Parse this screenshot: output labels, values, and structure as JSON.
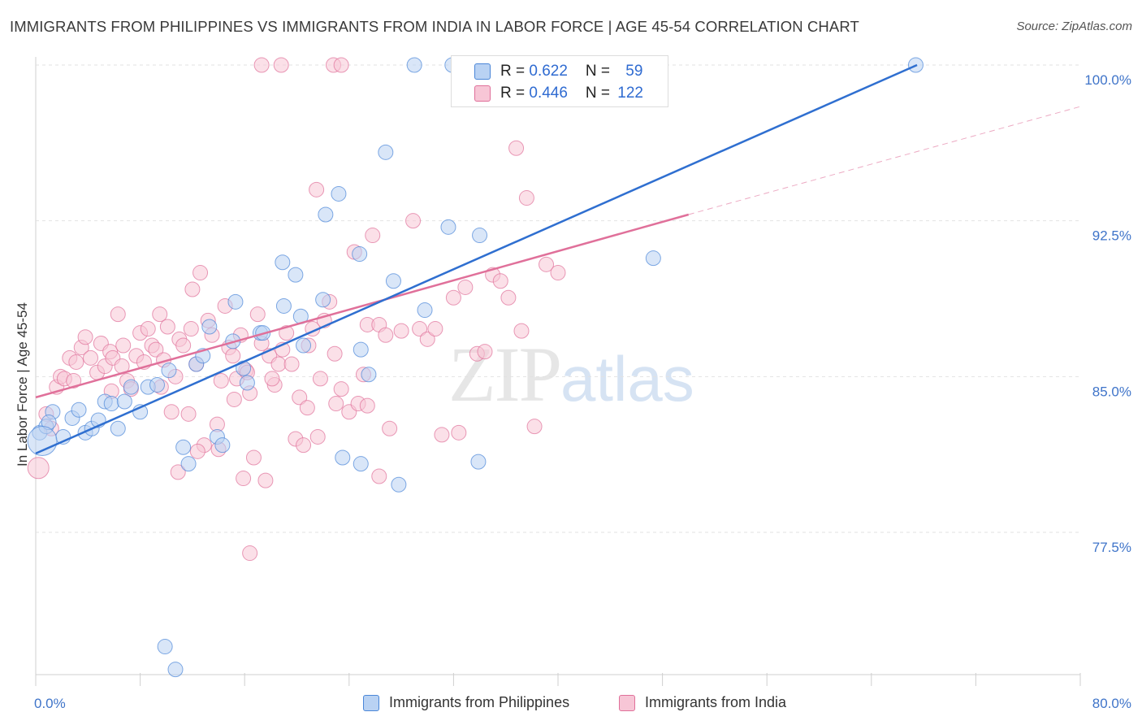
{
  "title": "IMMIGRANTS FROM PHILIPPINES VS IMMIGRANTS FROM INDIA IN LABOR FORCE | AGE 45-54 CORRELATION CHART",
  "source": "Source: ZipAtlas.com",
  "watermark": {
    "zip": "ZIP",
    "atlas": "atlas"
  },
  "stats": [
    {
      "r_label": "R = ",
      "r_value": "0.622",
      "n_label": "N = ",
      "n_value": "59",
      "color": "#a9c7f0"
    },
    {
      "r_label": "R = ",
      "r_value": "0.446",
      "n_label": "N = ",
      "n_value": "122",
      "color": "#f5b9cc"
    }
  ],
  "chart_data": {
    "type": "scatter",
    "xlabel": "",
    "ylabel": "In Labor Force | Age 45-54",
    "xlim": [
      0,
      80
    ],
    "ylim": [
      70.5,
      100.8
    ],
    "x_ticks": [
      {
        "value": 0,
        "label": "0.0%"
      },
      {
        "value": 80,
        "label": "80.0%"
      }
    ],
    "y_ticks": [
      {
        "value": 100,
        "label": "100.0%"
      },
      {
        "value": 92.5,
        "label": "92.5%"
      },
      {
        "value": 85,
        "label": "85.0%"
      },
      {
        "value": 77.5,
        "label": "77.5%"
      }
    ],
    "grid": true,
    "legend": "bottom",
    "series": [
      {
        "name": "Immigrants from Philippines",
        "color": "#4a86d8",
        "fill": "#b9d2f3",
        "trend": {
          "x": [
            0,
            67.5
          ],
          "y": [
            81.3,
            100
          ]
        },
        "points": [
          [
            0.3,
            82.3
          ],
          [
            0.8,
            82.6
          ],
          [
            1.3,
            83.3
          ],
          [
            1.0,
            82.8
          ],
          [
            2.1,
            82.1
          ],
          [
            2.8,
            83.0
          ],
          [
            3.3,
            83.4
          ],
          [
            3.8,
            82.3
          ],
          [
            4.3,
            82.5
          ],
          [
            4.8,
            82.9
          ],
          [
            5.3,
            83.8
          ],
          [
            5.8,
            83.7
          ],
          [
            6.3,
            82.5
          ],
          [
            6.8,
            83.8
          ],
          [
            7.3,
            84.5
          ],
          [
            8.0,
            83.3
          ],
          [
            8.6,
            84.5
          ],
          [
            9.3,
            84.6
          ],
          [
            10.2,
            85.3
          ],
          [
            11.3,
            81.6
          ],
          [
            11.7,
            80.8
          ],
          [
            12.3,
            85.6
          ],
          [
            12.8,
            86.0
          ],
          [
            13.3,
            87.4
          ],
          [
            13.9,
            82.1
          ],
          [
            14.3,
            81.7
          ],
          [
            15.1,
            86.7
          ],
          [
            15.3,
            88.6
          ],
          [
            15.9,
            85.4
          ],
          [
            16.2,
            84.7
          ],
          [
            17.2,
            87.1
          ],
          [
            17.4,
            87.1
          ],
          [
            18.9,
            90.5
          ],
          [
            19.0,
            88.4
          ],
          [
            19.9,
            89.9
          ],
          [
            20.3,
            87.9
          ],
          [
            20.5,
            86.5
          ],
          [
            22.2,
            92.8
          ],
          [
            22.0,
            88.7
          ],
          [
            23.2,
            93.8
          ],
          [
            23.5,
            81.1
          ],
          [
            24.8,
            90.9
          ],
          [
            24.9,
            86.3
          ],
          [
            24.9,
            80.8
          ],
          [
            25.5,
            85.1
          ],
          [
            26.8,
            95.8
          ],
          [
            27.4,
            89.6
          ],
          [
            27.8,
            79.8
          ],
          [
            29.0,
            100
          ],
          [
            29.8,
            88.2
          ],
          [
            31.6,
            92.2
          ],
          [
            31.9,
            100
          ],
          [
            34.0,
            91.8
          ],
          [
            33.9,
            80.9
          ],
          [
            47.3,
            90.7
          ],
          [
            9.9,
            72.0
          ],
          [
            10.7,
            70.9
          ],
          [
            67.4,
            100
          ],
          [
            0.5,
            81.9
          ]
        ]
      },
      {
        "name": "Immigrants from India",
        "color": "#e0709a",
        "fill": "#f7c6d6",
        "trend": {
          "x": [
            0,
            50
          ],
          "y": [
            84.0,
            92.8
          ]
        },
        "trend_ext": {
          "x": [
            50,
            80
          ],
          "y": [
            92.8,
            98.0
          ]
        },
        "points": [
          [
            0.2,
            80.6
          ],
          [
            0.8,
            83.2
          ],
          [
            1.2,
            82.5
          ],
          [
            1.6,
            84.5
          ],
          [
            1.9,
            85.0
          ],
          [
            2.2,
            84.9
          ],
          [
            2.6,
            85.9
          ],
          [
            2.9,
            84.8
          ],
          [
            3.1,
            85.7
          ],
          [
            3.5,
            86.4
          ],
          [
            3.8,
            86.9
          ],
          [
            4.2,
            85.9
          ],
          [
            4.7,
            85.2
          ],
          [
            5.0,
            86.6
          ],
          [
            5.3,
            85.5
          ],
          [
            5.7,
            86.2
          ],
          [
            5.9,
            85.9
          ],
          [
            6.3,
            88.0
          ],
          [
            6.6,
            85.5
          ],
          [
            7.0,
            84.8
          ],
          [
            7.3,
            84.4
          ],
          [
            7.7,
            86.0
          ],
          [
            8.0,
            87.1
          ],
          [
            8.3,
            85.7
          ],
          [
            8.6,
            87.3
          ],
          [
            8.9,
            86.5
          ],
          [
            9.2,
            86.3
          ],
          [
            9.5,
            88.0
          ],
          [
            9.8,
            85.8
          ],
          [
            10.1,
            87.4
          ],
          [
            10.4,
            83.3
          ],
          [
            10.7,
            85.0
          ],
          [
            11.0,
            86.8
          ],
          [
            11.3,
            86.5
          ],
          [
            11.7,
            83.2
          ],
          [
            12.0,
            89.2
          ],
          [
            12.3,
            85.6
          ],
          [
            12.6,
            90.0
          ],
          [
            12.9,
            81.7
          ],
          [
            13.2,
            87.7
          ],
          [
            13.5,
            87.0
          ],
          [
            13.9,
            82.7
          ],
          [
            14.2,
            84.8
          ],
          [
            14.5,
            88.4
          ],
          [
            14.8,
            86.4
          ],
          [
            15.1,
            86.0
          ],
          [
            15.4,
            84.9
          ],
          [
            15.7,
            87.0
          ],
          [
            16.1,
            85.3
          ],
          [
            16.4,
            84.2
          ],
          [
            16.7,
            81.1
          ],
          [
            17.0,
            88.0
          ],
          [
            17.3,
            86.6
          ],
          [
            17.6,
            80.0
          ],
          [
            17.9,
            86.0
          ],
          [
            18.3,
            84.6
          ],
          [
            18.6,
            85.6
          ],
          [
            18.9,
            86.3
          ],
          [
            19.2,
            87.1
          ],
          [
            19.6,
            85.6
          ],
          [
            19.9,
            82.0
          ],
          [
            20.2,
            84.0
          ],
          [
            20.5,
            81.7
          ],
          [
            20.9,
            86.5
          ],
          [
            21.2,
            87.3
          ],
          [
            21.5,
            94.0
          ],
          [
            21.8,
            84.9
          ],
          [
            22.1,
            87.7
          ],
          [
            22.5,
            88.6
          ],
          [
            22.9,
            86.1
          ],
          [
            23.4,
            84.4
          ],
          [
            24.0,
            83.3
          ],
          [
            24.4,
            91.0
          ],
          [
            24.7,
            83.7
          ],
          [
            25.1,
            85.1
          ],
          [
            25.4,
            87.5
          ],
          [
            25.8,
            91.8
          ],
          [
            26.3,
            87.5
          ],
          [
            26.8,
            87.0
          ],
          [
            27.1,
            82.5
          ],
          [
            28.0,
            87.2
          ],
          [
            28.9,
            92.5
          ],
          [
            29.4,
            87.3
          ],
          [
            30.0,
            86.8
          ],
          [
            30.6,
            87.3
          ],
          [
            31.1,
            82.2
          ],
          [
            32.0,
            88.8
          ],
          [
            32.4,
            82.3
          ],
          [
            32.9,
            89.3
          ],
          [
            33.8,
            86.1
          ],
          [
            34.4,
            86.2
          ],
          [
            35.0,
            89.9
          ],
          [
            35.6,
            89.6
          ],
          [
            36.2,
            88.8
          ],
          [
            36.8,
            96.0
          ],
          [
            37.2,
            87.2
          ],
          [
            37.6,
            93.6
          ],
          [
            38.2,
            82.6
          ],
          [
            39.1,
            90.4
          ],
          [
            40.0,
            90.0
          ],
          [
            41.8,
            100
          ],
          [
            22.8,
            100
          ],
          [
            23.4,
            100
          ],
          [
            17.3,
            100
          ],
          [
            18.8,
            100
          ],
          [
            16.4,
            76.5
          ],
          [
            5.8,
            84.3
          ],
          [
            6.7,
            86.5
          ],
          [
            9.6,
            84.5
          ],
          [
            10.9,
            80.4
          ],
          [
            12.4,
            81.4
          ],
          [
            14.0,
            81.5
          ],
          [
            15.9,
            80.1
          ],
          [
            18.1,
            84.9
          ],
          [
            20.8,
            83.5
          ],
          [
            21.6,
            82.1
          ],
          [
            23.0,
            83.7
          ],
          [
            25.4,
            83.6
          ],
          [
            26.3,
            80.2
          ],
          [
            15.2,
            83.9
          ],
          [
            16.2,
            85.2
          ],
          [
            11.9,
            87.3
          ]
        ]
      }
    ]
  }
}
